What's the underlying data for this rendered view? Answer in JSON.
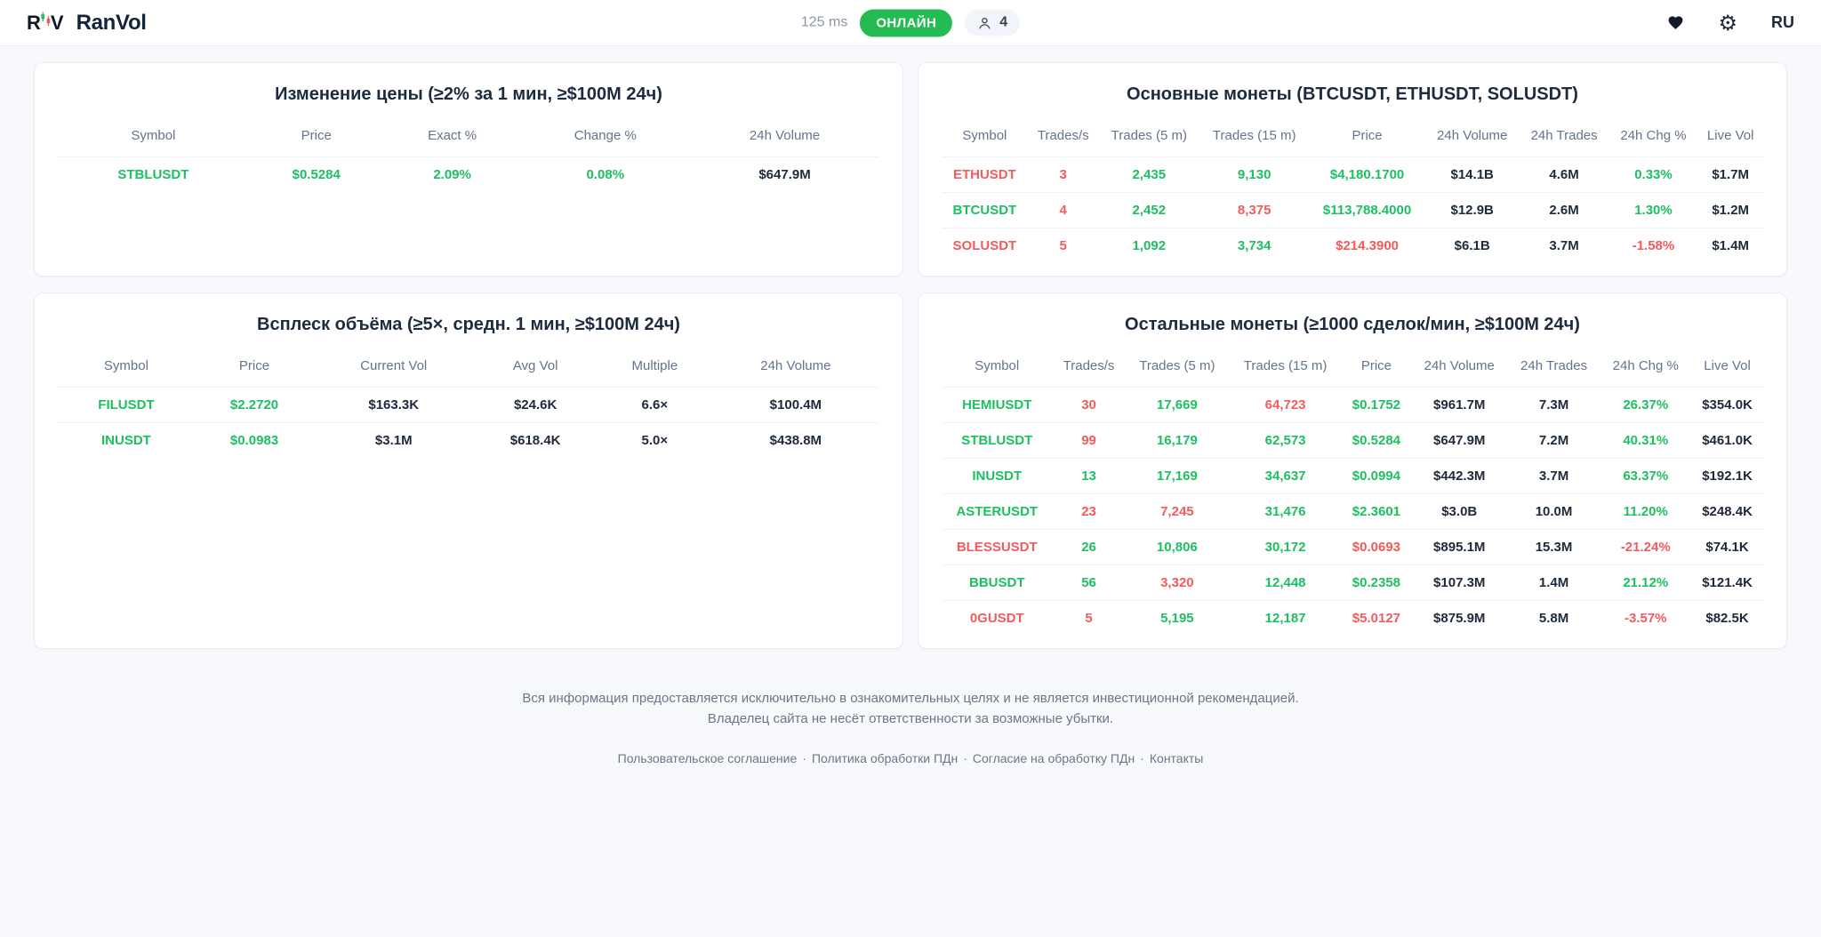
{
  "colors": {
    "green": "#1dbf61",
    "red": "#f15b5b",
    "dark": "#1e293b",
    "badge_green": "#24bb52"
  },
  "header": {
    "brand": "RanVol",
    "latency": "125 ms",
    "status": "ОНЛАЙН",
    "viewers": "4",
    "language": "RU"
  },
  "panels": [
    {
      "title": "Изменение цены (≥2% за 1 мин, ≥$100M 24ч)",
      "columns": [
        "Symbol",
        "Price",
        "Exact %",
        "Change %",
        "24h Volume"
      ],
      "rows": [
        [
          [
            "STBLUSDT",
            "green"
          ],
          [
            "$0.5284",
            "green"
          ],
          [
            "2.09%",
            "green"
          ],
          [
            "0.08%",
            "green"
          ],
          [
            "$647.9M",
            "dark"
          ]
        ]
      ]
    },
    {
      "title": "Основные монеты (BTCUSDT, ETHUSDT, SOLUSDT)",
      "columns": [
        "Symbol",
        "Trades/s",
        "Trades (5 m)",
        "Trades (15 m)",
        "Price",
        "24h Volume",
        "24h Trades",
        "24h Chg %",
        "Live Vol"
      ],
      "rows": [
        [
          [
            "ETHUSDT",
            "red"
          ],
          [
            "3",
            "red"
          ],
          [
            "2,435",
            "green"
          ],
          [
            "9,130",
            "green"
          ],
          [
            "$4,180.1700",
            "green"
          ],
          [
            "$14.1B",
            "dark"
          ],
          [
            "4.6M",
            "dark"
          ],
          [
            "0.33%",
            "green"
          ],
          [
            "$1.7M",
            "dark"
          ]
        ],
        [
          [
            "BTCUSDT",
            "green"
          ],
          [
            "4",
            "red"
          ],
          [
            "2,452",
            "green"
          ],
          [
            "8,375",
            "red"
          ],
          [
            "$113,788.4000",
            "green"
          ],
          [
            "$12.9B",
            "dark"
          ],
          [
            "2.6M",
            "dark"
          ],
          [
            "1.30%",
            "green"
          ],
          [
            "$1.2M",
            "dark"
          ]
        ],
        [
          [
            "SOLUSDT",
            "red"
          ],
          [
            "5",
            "red"
          ],
          [
            "1,092",
            "green"
          ],
          [
            "3,734",
            "green"
          ],
          [
            "$214.3900",
            "red"
          ],
          [
            "$6.1B",
            "dark"
          ],
          [
            "3.7M",
            "dark"
          ],
          [
            "-1.58%",
            "red"
          ],
          [
            "$1.4M",
            "dark"
          ]
        ]
      ]
    },
    {
      "title": "Всплеск объёма (≥5×, средн. 1 мин, ≥$100M 24ч)",
      "columns": [
        "Symbol",
        "Price",
        "Current Vol",
        "Avg Vol",
        "Multiple",
        "24h Volume"
      ],
      "rows": [
        [
          [
            "FILUSDT",
            "green"
          ],
          [
            "$2.2720",
            "green"
          ],
          [
            "$163.3K",
            "dark"
          ],
          [
            "$24.6K",
            "dark"
          ],
          [
            "6.6×",
            "dark"
          ],
          [
            "$100.4M",
            "dark"
          ]
        ],
        [
          [
            "INUSDT",
            "green"
          ],
          [
            "$0.0983",
            "green"
          ],
          [
            "$3.1M",
            "dark"
          ],
          [
            "$618.4K",
            "dark"
          ],
          [
            "5.0×",
            "dark"
          ],
          [
            "$438.8M",
            "dark"
          ]
        ]
      ]
    },
    {
      "title": "Остальные монеты (≥1000 сделок/мин, ≥$100M 24ч)",
      "columns": [
        "Symbol",
        "Trades/s",
        "Trades (5 m)",
        "Trades (15 m)",
        "Price",
        "24h Volume",
        "24h Trades",
        "24h Chg %",
        "Live Vol"
      ],
      "rows": [
        [
          [
            "HEMIUSDT",
            "green"
          ],
          [
            "30",
            "red"
          ],
          [
            "17,669",
            "green"
          ],
          [
            "64,723",
            "red"
          ],
          [
            "$0.1752",
            "green"
          ],
          [
            "$961.7M",
            "dark"
          ],
          [
            "7.3M",
            "dark"
          ],
          [
            "26.37%",
            "green"
          ],
          [
            "$354.0K",
            "dark"
          ]
        ],
        [
          [
            "STBLUSDT",
            "green"
          ],
          [
            "99",
            "red"
          ],
          [
            "16,179",
            "green"
          ],
          [
            "62,573",
            "green"
          ],
          [
            "$0.5284",
            "green"
          ],
          [
            "$647.9M",
            "dark"
          ],
          [
            "7.2M",
            "dark"
          ],
          [
            "40.31%",
            "green"
          ],
          [
            "$461.0K",
            "dark"
          ]
        ],
        [
          [
            "INUSDT",
            "green"
          ],
          [
            "13",
            "green"
          ],
          [
            "17,169",
            "green"
          ],
          [
            "34,637",
            "green"
          ],
          [
            "$0.0994",
            "green"
          ],
          [
            "$442.3M",
            "dark"
          ],
          [
            "3.7M",
            "dark"
          ],
          [
            "63.37%",
            "green"
          ],
          [
            "$192.1K",
            "dark"
          ]
        ],
        [
          [
            "ASTERUSDT",
            "green"
          ],
          [
            "23",
            "red"
          ],
          [
            "7,245",
            "red"
          ],
          [
            "31,476",
            "green"
          ],
          [
            "$2.3601",
            "green"
          ],
          [
            "$3.0B",
            "dark"
          ],
          [
            "10.0M",
            "dark"
          ],
          [
            "11.20%",
            "green"
          ],
          [
            "$248.4K",
            "dark"
          ]
        ],
        [
          [
            "BLESSUSDT",
            "red"
          ],
          [
            "26",
            "green"
          ],
          [
            "10,806",
            "green"
          ],
          [
            "30,172",
            "green"
          ],
          [
            "$0.0693",
            "red"
          ],
          [
            "$895.1M",
            "dark"
          ],
          [
            "15.3M",
            "dark"
          ],
          [
            "-21.24%",
            "red"
          ],
          [
            "$74.1K",
            "dark"
          ]
        ],
        [
          [
            "BBUSDT",
            "green"
          ],
          [
            "56",
            "green"
          ],
          [
            "3,320",
            "red"
          ],
          [
            "12,448",
            "green"
          ],
          [
            "$0.2358",
            "green"
          ],
          [
            "$107.3M",
            "dark"
          ],
          [
            "1.4M",
            "dark"
          ],
          [
            "21.12%",
            "green"
          ],
          [
            "$121.4K",
            "dark"
          ]
        ],
        [
          [
            "0GUSDT",
            "red"
          ],
          [
            "5",
            "red"
          ],
          [
            "5,195",
            "green"
          ],
          [
            "12,187",
            "green"
          ],
          [
            "$5.0127",
            "red"
          ],
          [
            "$875.9M",
            "dark"
          ],
          [
            "5.8M",
            "dark"
          ],
          [
            "-3.57%",
            "red"
          ],
          [
            "$82.5K",
            "dark"
          ]
        ]
      ]
    }
  ],
  "footer": {
    "disclaimer_line1": "Вся информация предоставляется исключительно в ознакомительных целях и не является инвестиционной рекомендацией.",
    "disclaimer_line2": "Владелец сайта не несёт ответственности за возможные убытки.",
    "links": [
      "Пользовательское соглашение",
      "Политика обработки ПДн",
      "Согласие на обработку ПДн",
      "Контакты"
    ],
    "link_separator": "·"
  }
}
